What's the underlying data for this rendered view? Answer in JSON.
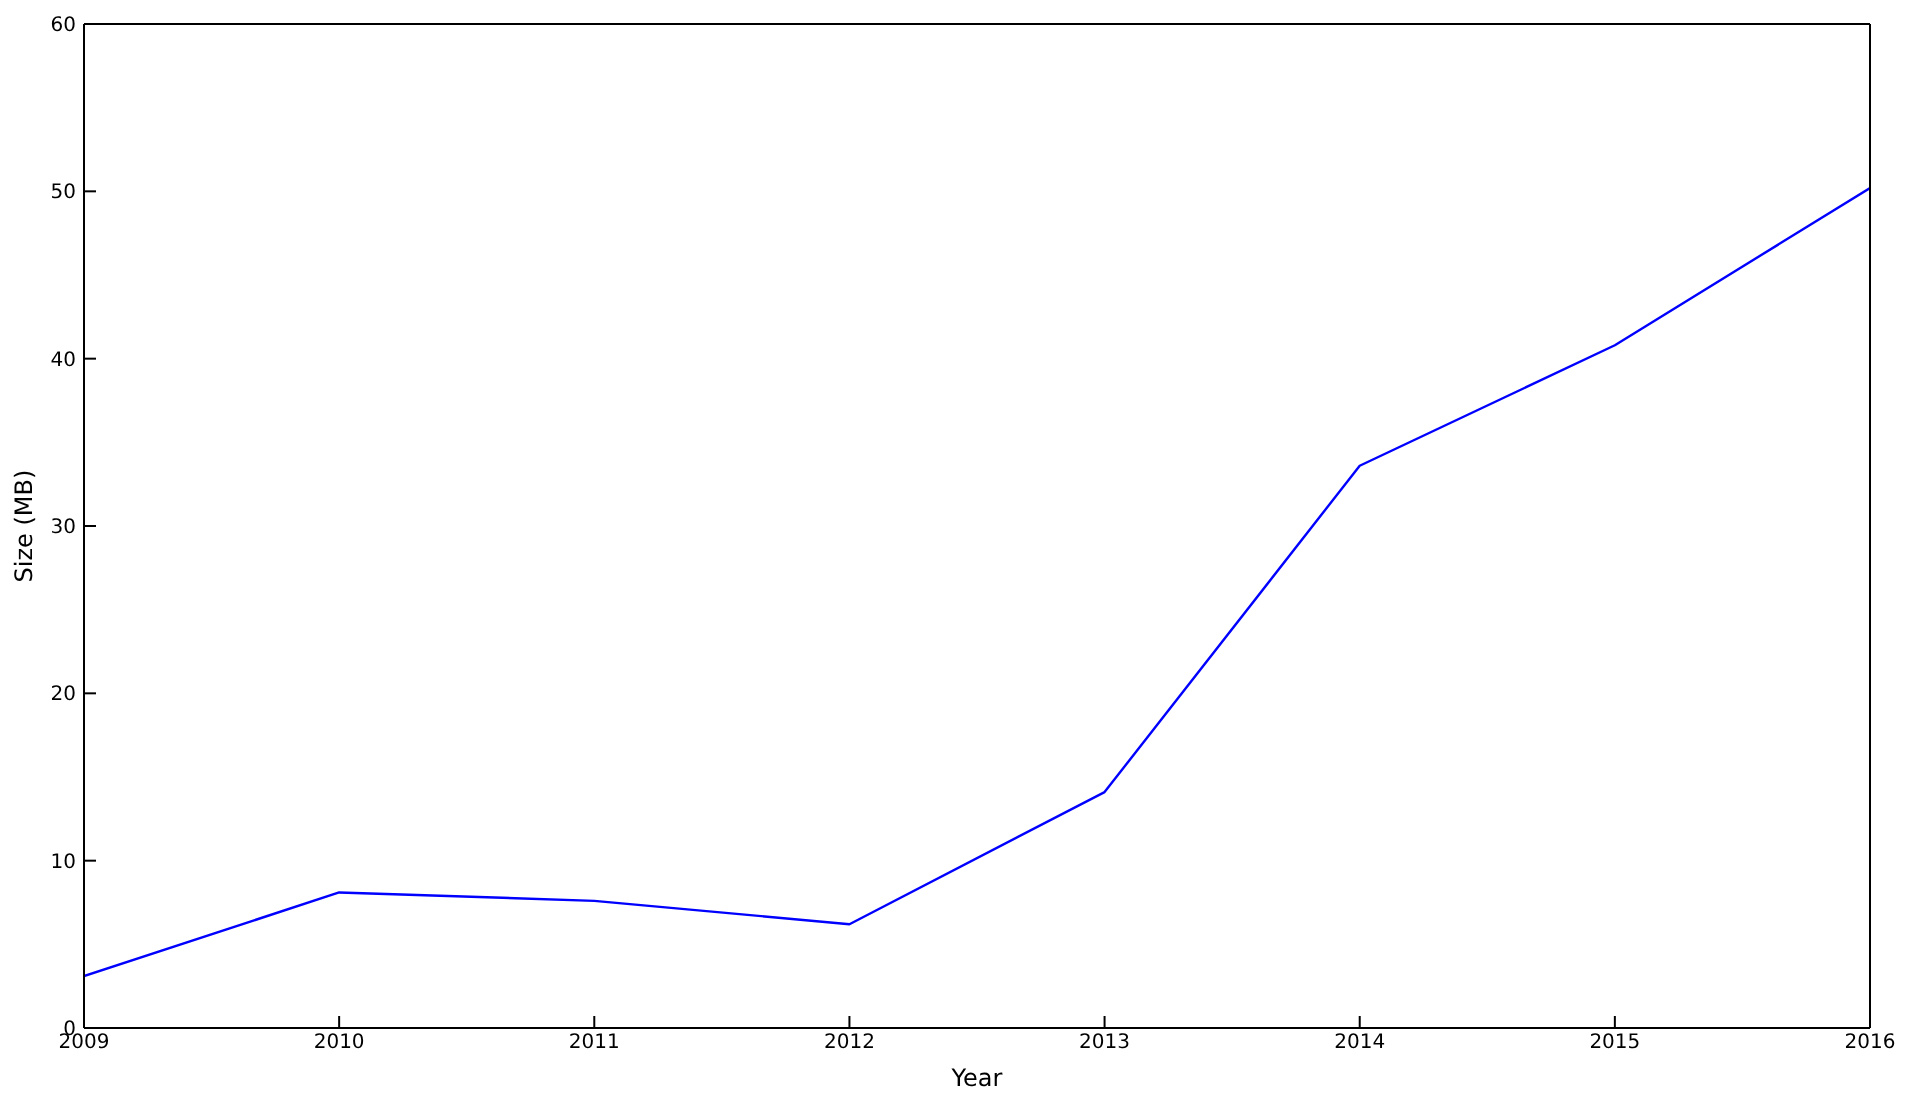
{
  "chart_data": {
    "type": "line",
    "xlabel": "Year",
    "ylabel": "Size (MB)",
    "x": [
      2009,
      2010,
      2011,
      2012,
      2013,
      2014,
      2015,
      2016
    ],
    "xlim": [
      2009,
      2016
    ],
    "xticks": [
      2009,
      2010,
      2011,
      2012,
      2013,
      2014,
      2015,
      2016
    ],
    "ylim": [
      0,
      60
    ],
    "yticks": [
      0,
      10,
      20,
      30,
      40,
      50,
      60
    ],
    "line_style": "solid",
    "series": [
      {
        "color": "#0000ff",
        "values": [
          3.1,
          8.1,
          7.6,
          6.2,
          14.1,
          33.6,
          40.8,
          50.2
        ]
      }
    ]
  }
}
